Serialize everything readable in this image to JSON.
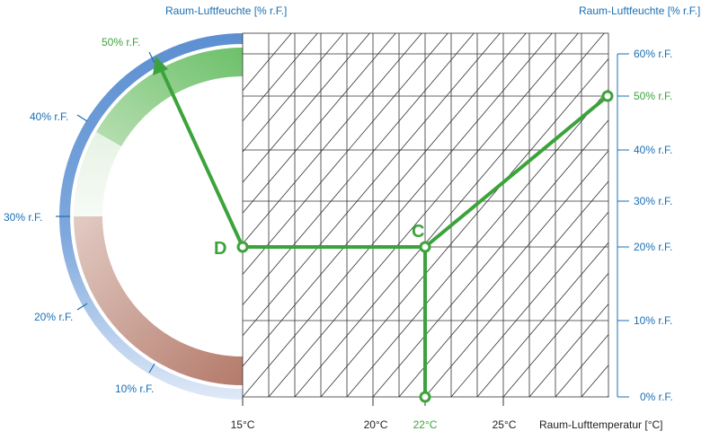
{
  "header": {
    "left_title": "Raum-Luftfeuchte [% r.F.]",
    "right_title": "Raum-Luftfeuchte [% r.F.]"
  },
  "gauge": {
    "labels": [
      "50% r.F.",
      "40% r.F.",
      "30% r.F.",
      "20% r.F.",
      "10% r.F."
    ],
    "highlight": "50% r.F."
  },
  "right_axis": {
    "ticks": [
      "60% r.F.",
      "50% r.F.",
      "40% r.F.",
      "30% r.F.",
      "20% r.F.",
      "10% r.F.",
      "0% r.F."
    ],
    "highlight": "50% r.F."
  },
  "bottom_axis": {
    "ticks": [
      "15°C",
      "20°C",
      "22°C",
      "25°C"
    ],
    "highlight": "22°C",
    "label": "Raum-Lufttemperatur [°C]"
  },
  "points": {
    "C": "C",
    "D": "D"
  },
  "colors": {
    "blue": "#1a6fb5",
    "green": "#3ca33c",
    "grid": "#333333"
  }
}
